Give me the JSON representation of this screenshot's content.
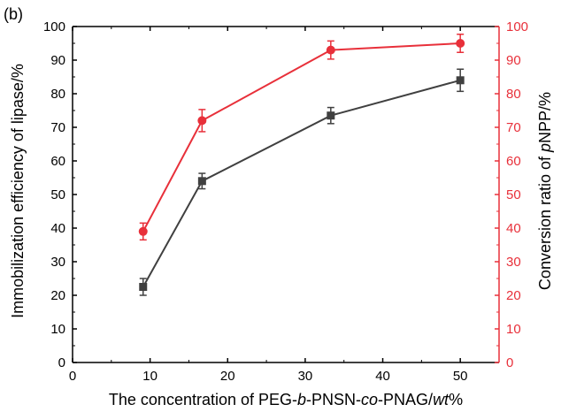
{
  "chart_data": {
    "type": "line",
    "panel_label": "(b)",
    "x": [
      9.1,
      16.7,
      33.3,
      50
    ],
    "xlim": [
      0,
      55
    ],
    "xticks": [
      0,
      10,
      20,
      30,
      40,
      50
    ],
    "xlabel": {
      "prefix": "The concentration of PEG-",
      "italic1": "b",
      "middle": "-PNSN-",
      "italic2": "co",
      "suffix": "-PNAG/",
      "italic3": "wt",
      "end": "%"
    },
    "left_axis": {
      "ylim": [
        0,
        100
      ],
      "ticks": [
        0,
        10,
        20,
        30,
        40,
        50,
        60,
        70,
        80,
        90,
        100
      ],
      "label": "Immobilization efficiency of lipase/%",
      "color": "#404040"
    },
    "right_axis": {
      "ylim": [
        0,
        100
      ],
      "ticks": [
        0,
        10,
        20,
        30,
        40,
        50,
        60,
        70,
        80,
        90,
        100
      ],
      "label_prefix": "Conversion ratio of ",
      "label_italic": "p",
      "label_suffix": "NPP/%",
      "color": "#e8303a"
    },
    "series": [
      {
        "axis": "left",
        "marker": "square",
        "color": "#404040",
        "values": [
          22.5,
          54.0,
          73.5,
          84.0
        ],
        "errors": [
          2.5,
          2.3,
          2.4,
          3.3
        ]
      },
      {
        "axis": "right",
        "marker": "circle",
        "color": "#e8303a",
        "values": [
          39.0,
          72.0,
          93.0,
          95.0
        ],
        "errors": [
          2.5,
          3.3,
          2.7,
          2.7
        ]
      }
    ]
  }
}
